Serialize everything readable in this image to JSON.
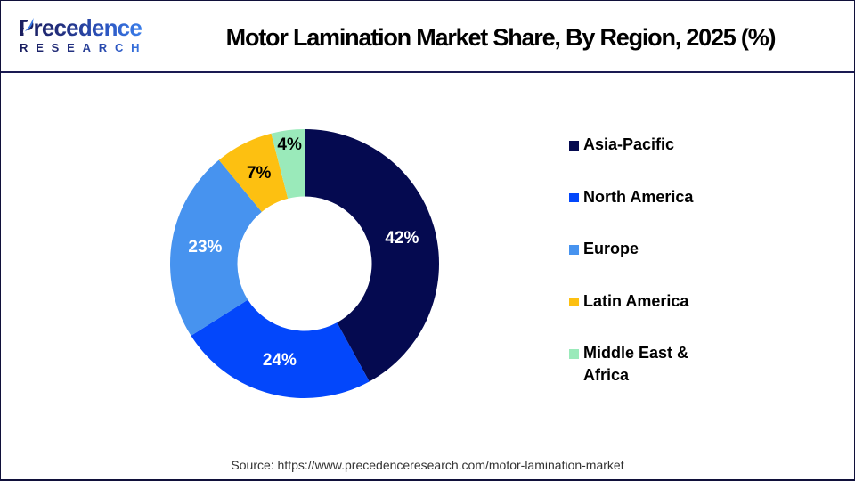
{
  "header": {
    "logo": {
      "name": "Precedence Research",
      "line1": "Precedence",
      "line2": "RESEARCH",
      "dark_color": "#191d5e",
      "light_color": "#3a7de9"
    },
    "title": "Motor Lamination Market Share, By Region, 2025 (%)"
  },
  "chart_data": {
    "type": "pie",
    "subtype": "donut",
    "title": "Motor Lamination Market Share, By Region, 2025 (%)",
    "unit": "%",
    "start_angle_deg": 0,
    "direction": "clockwise",
    "inner_radius_ratio": 0.5,
    "legend_position": "right",
    "slices": [
      {
        "label": "Asia-Pacific",
        "value": 42,
        "color": "#050a50",
        "data_label": "42%",
        "data_label_color": "#ffffff"
      },
      {
        "label": "North America",
        "value": 24,
        "color": "#0347fb",
        "data_label": "24%",
        "data_label_color": "#ffffff"
      },
      {
        "label": "Europe",
        "value": 23,
        "color": "#4793ef",
        "data_label": "23%",
        "data_label_color": "#ffffff"
      },
      {
        "label": "Latin America",
        "value": 7,
        "color": "#fdc011",
        "data_label": "7%",
        "data_label_color": "#000000"
      },
      {
        "label": "Middle East & Africa",
        "value": 4,
        "color": "#9aeaba",
        "data_label": "4%",
        "data_label_color": "#000000",
        "label_radius_hint": 134.5
      }
    ]
  },
  "footer": {
    "source_text": "Source: https://www.precedenceresearch.com/motor-lamination-market"
  }
}
